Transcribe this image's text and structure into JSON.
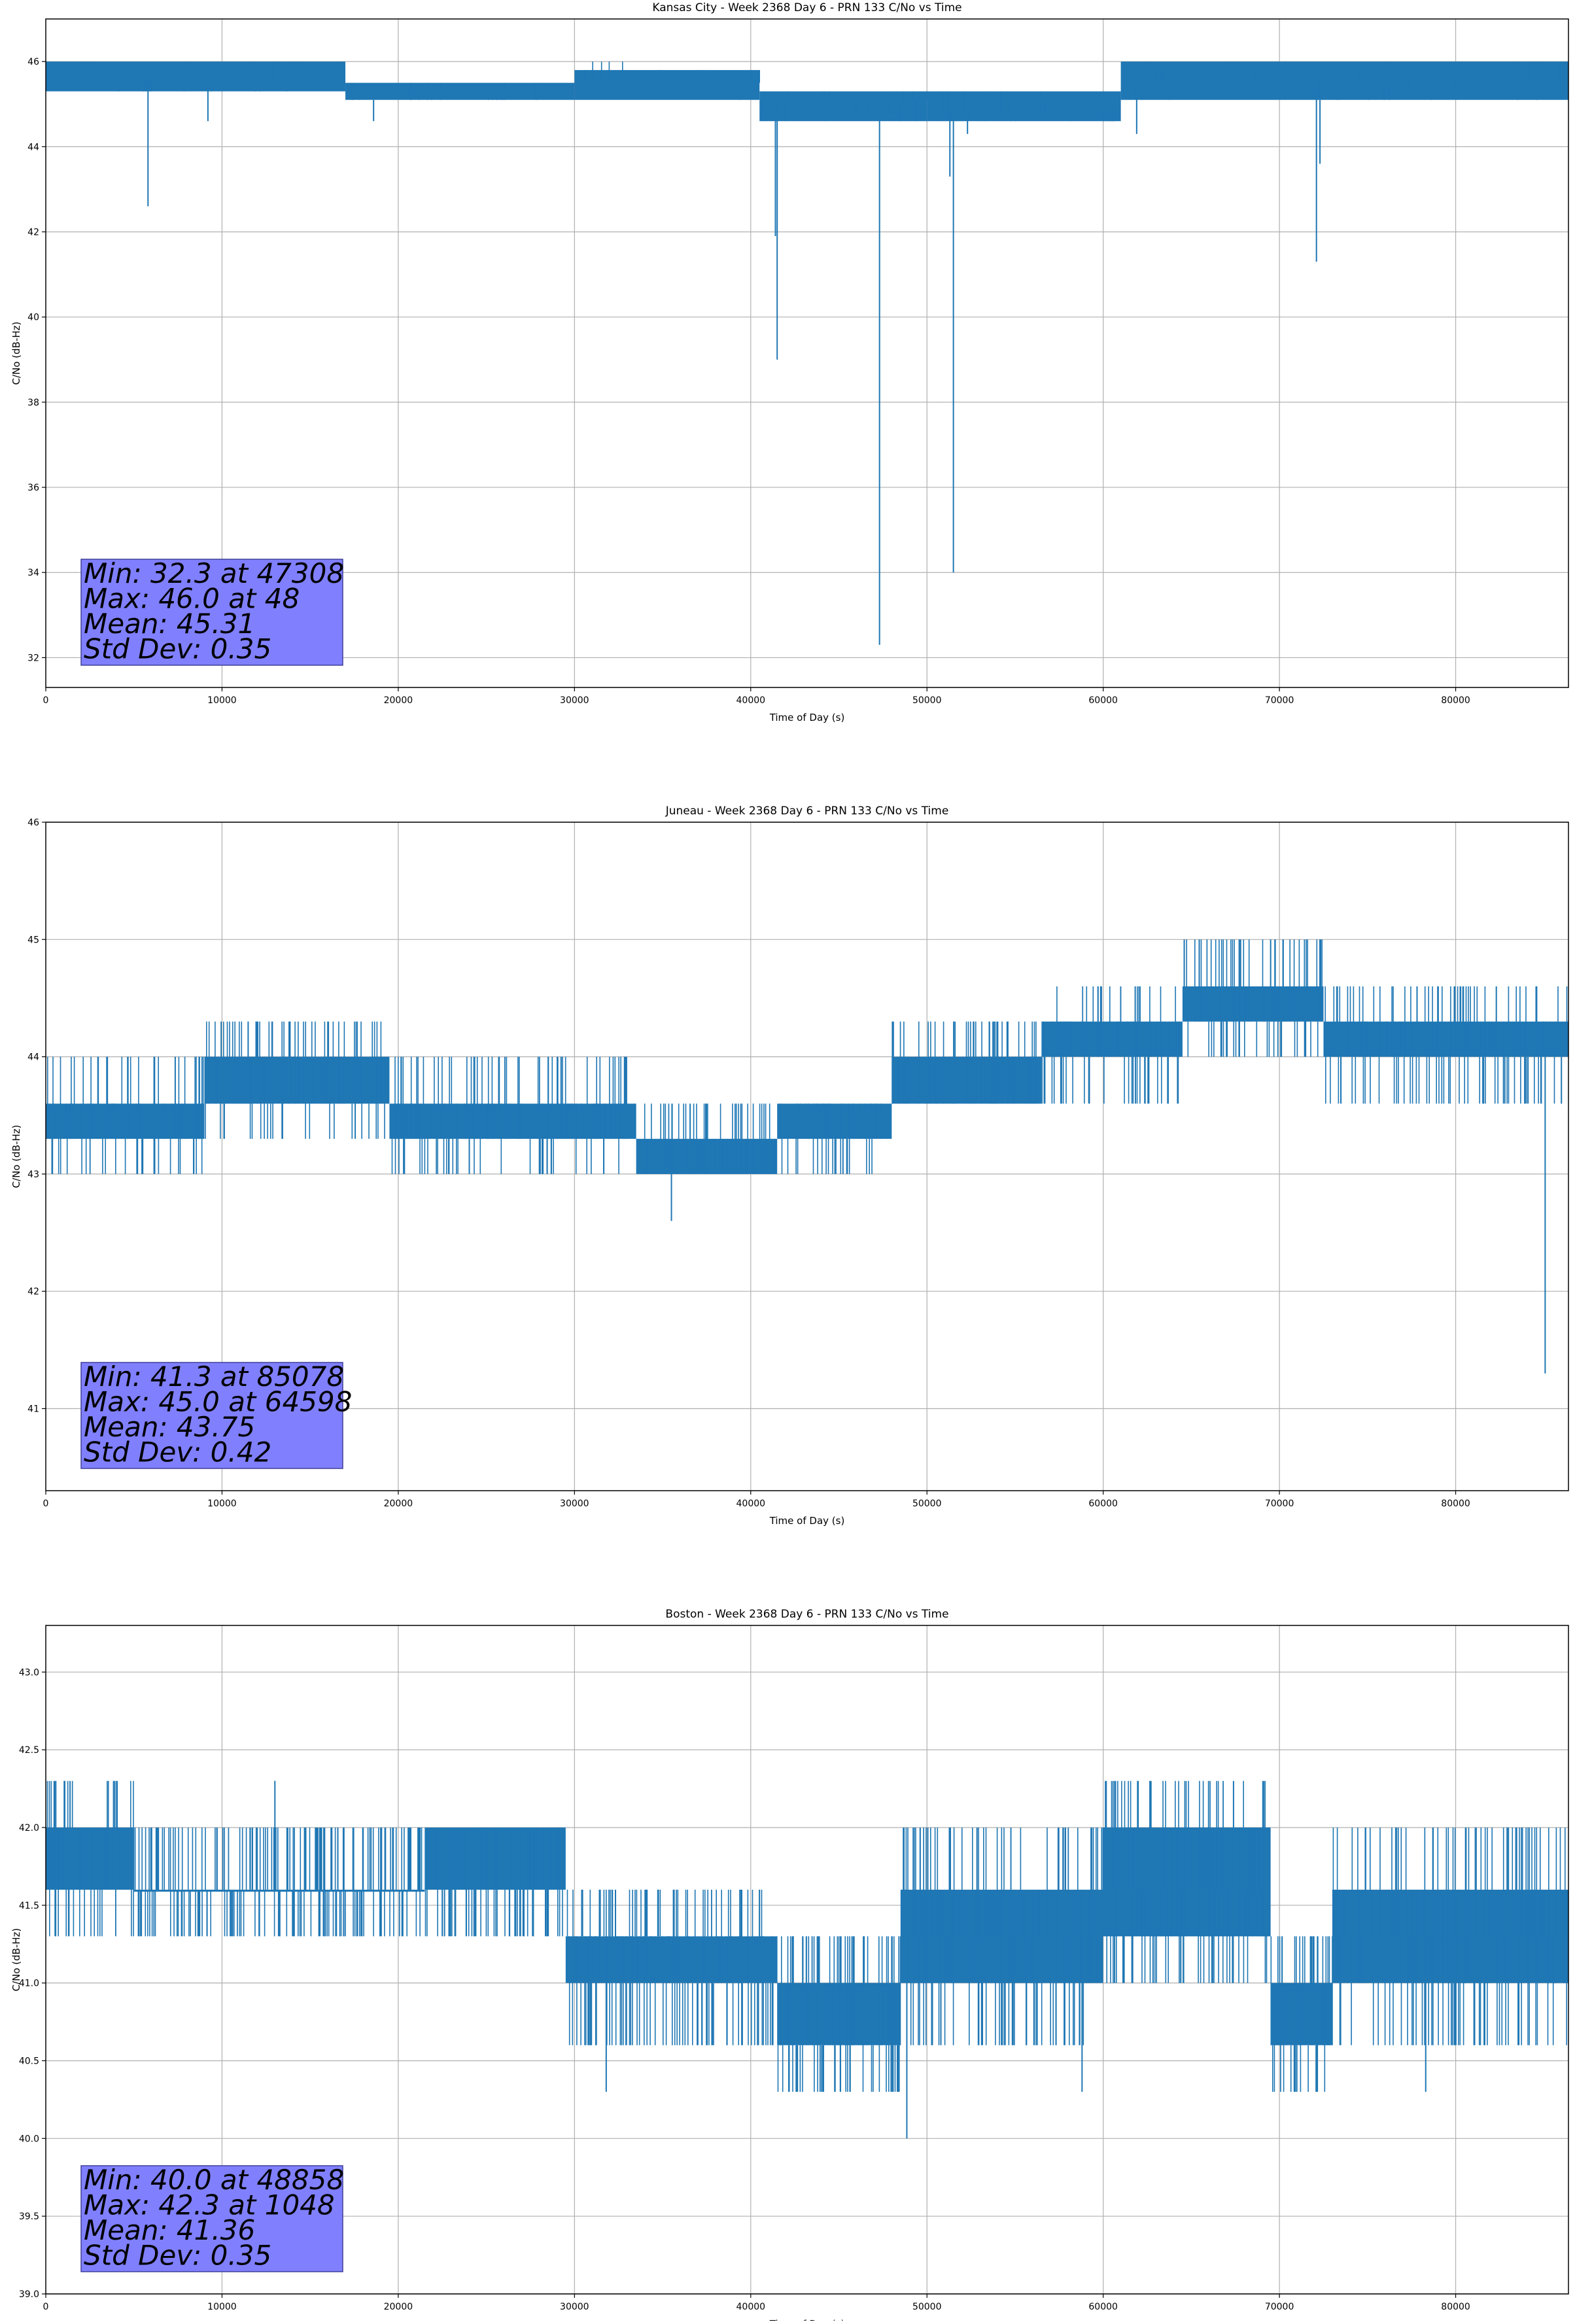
{
  "chart_data": [
    {
      "type": "line",
      "title": "Kansas City - Week 2368 Day 6 - PRN 133 C/No vs Time",
      "xlabel": "Time of Day (s)",
      "ylabel": "C/No (dB-Hz)",
      "xlim": [
        0,
        86400
      ],
      "ylim": [
        31.3,
        47.0
      ],
      "xticks": [
        0,
        10000,
        20000,
        30000,
        40000,
        50000,
        60000,
        70000,
        80000
      ],
      "yticks": [
        32,
        34,
        36,
        38,
        40,
        42,
        44,
        46
      ],
      "ytick_decimals": 0,
      "grid": true,
      "color": "#1f77b4",
      "segments": [
        {
          "x": [
            0,
            17000
          ],
          "base": 45.5,
          "lo": 45.3,
          "hi": 46.0,
          "steps": [
            45.3,
            45.5,
            46.0
          ],
          "density": 0.06
        },
        {
          "x": [
            17000,
            30000
          ],
          "base": 45.1,
          "lo": 45.1,
          "hi": 45.5,
          "steps": [
            45.1,
            45.3,
            45.5
          ],
          "density": 0.08
        },
        {
          "x": [
            30000,
            40500
          ],
          "base": 45.5,
          "lo": 45.1,
          "hi": 45.8,
          "steps": [
            45.1,
            45.5,
            45.8,
            46.0
          ],
          "density": 0.05
        },
        {
          "x": [
            40500,
            50000
          ],
          "base": 45.1,
          "lo": 44.6,
          "hi": 45.3,
          "steps": [
            44.6,
            44.8,
            45.1,
            45.3
          ],
          "density": 0.12
        },
        {
          "x": [
            50000,
            61000
          ],
          "base": 44.8,
          "lo": 44.6,
          "hi": 45.3,
          "steps": [
            44.6,
            44.8,
            45.1,
            45.3
          ],
          "density": 0.12
        },
        {
          "x": [
            61000,
            86400
          ],
          "base": 45.5,
          "lo": 45.1,
          "hi": 46.0,
          "steps": [
            45.1,
            45.3,
            45.5,
            45.8,
            46.0
          ],
          "density": 0.07
        }
      ],
      "spikes": [
        {
          "x": 5800,
          "y": 42.6
        },
        {
          "x": 9200,
          "y": 44.6
        },
        {
          "x": 18600,
          "y": 44.6
        },
        {
          "x": 41400,
          "y": 41.9
        },
        {
          "x": 41500,
          "y": 39.0
        },
        {
          "x": 47308,
          "y": 32.3
        },
        {
          "x": 51300,
          "y": 43.3
        },
        {
          "x": 51500,
          "y": 34.0
        },
        {
          "x": 52300,
          "y": 44.3
        },
        {
          "x": 61900,
          "y": 44.3
        },
        {
          "x": 72100,
          "y": 41.3
        },
        {
          "x": 72300,
          "y": 43.6
        }
      ],
      "stats": {
        "min": "Min: 32.3 at 47308",
        "max": "Max: 46.0 at 48",
        "mean": "Mean: 45.31",
        "std": "Std Dev: 0.35"
      }
    },
    {
      "type": "line",
      "title": "Juneau - Week 2368 Day 6 - PRN 133 C/No vs Time",
      "xlabel": "Time of Day (s)",
      "ylabel": "C/No (dB-Hz)",
      "xlim": [
        0,
        86400
      ],
      "ylim": [
        40.3,
        46.0
      ],
      "xticks": [
        0,
        10000,
        20000,
        30000,
        40000,
        50000,
        60000,
        70000,
        80000
      ],
      "yticks": [
        41,
        42,
        43,
        44,
        45,
        46
      ],
      "ytick_decimals": 0,
      "grid": true,
      "color": "#1f77b4",
      "segments": [
        {
          "x": [
            0,
            9000
          ],
          "base": 43.3,
          "lo": 43.3,
          "hi": 43.6,
          "steps": [
            43.0,
            43.3,
            43.6,
            44.0
          ],
          "density": 0.5
        },
        {
          "x": [
            9000,
            19500
          ],
          "base": 43.6,
          "lo": 43.6,
          "hi": 44.0,
          "steps": [
            43.3,
            43.6,
            44.0,
            44.3
          ],
          "density": 0.5
        },
        {
          "x": [
            19500,
            33500
          ],
          "base": 43.3,
          "lo": 43.3,
          "hi": 43.6,
          "steps": [
            43.0,
            43.3,
            43.6,
            44.0
          ],
          "density": 0.5
        },
        {
          "x": [
            33500,
            41500
          ],
          "base": 43.0,
          "lo": 43.0,
          "hi": 43.3,
          "steps": [
            43.0,
            43.3,
            43.6
          ],
          "density": 0.6
        },
        {
          "x": [
            41500,
            48000
          ],
          "base": 43.3,
          "lo": 43.3,
          "hi": 43.6,
          "steps": [
            43.0,
            43.3,
            43.6
          ],
          "density": 0.5
        },
        {
          "x": [
            48000,
            56500
          ],
          "base": 43.6,
          "lo": 43.6,
          "hi": 44.0,
          "steps": [
            43.6,
            44.0,
            44.3
          ],
          "density": 0.4
        },
        {
          "x": [
            56500,
            64500
          ],
          "base": 44.0,
          "lo": 44.0,
          "hi": 44.3,
          "steps": [
            43.6,
            44.0,
            44.3,
            44.6
          ],
          "density": 0.5
        },
        {
          "x": [
            64500,
            72500
          ],
          "base": 44.3,
          "lo": 44.3,
          "hi": 44.6,
          "steps": [
            44.0,
            44.3,
            44.6,
            45.0
          ],
          "density": 0.5
        },
        {
          "x": [
            72500,
            86400
          ],
          "base": 44.0,
          "lo": 44.0,
          "hi": 44.3,
          "steps": [
            43.6,
            44.0,
            44.3,
            44.6
          ],
          "density": 0.5
        }
      ],
      "spikes": [
        {
          "x": 35500,
          "y": 42.6
        },
        {
          "x": 85078,
          "y": 41.3
        },
        {
          "x": 64598,
          "y": 45.0
        },
        {
          "x": 69500,
          "y": 45.0
        },
        {
          "x": 86000,
          "y": 43.6
        }
      ],
      "stats": {
        "min": "Min: 41.3 at 85078",
        "max": "Max: 45.0 at 64598",
        "mean": "Mean: 43.75",
        "std": "Std Dev: 0.42"
      }
    },
    {
      "type": "line",
      "title": "Boston - Week 2368 Day 6 - PRN 133 C/No vs Time",
      "xlabel": "Time of Day (s)",
      "ylabel": "C/No (dB-Hz)",
      "xlim": [
        0,
        86400
      ],
      "ylim": [
        39.0,
        43.3
      ],
      "xticks": [
        0,
        10000,
        20000,
        30000,
        40000,
        50000,
        60000,
        70000,
        80000
      ],
      "yticks": [
        39.0,
        39.5,
        40.0,
        40.5,
        41.0,
        41.5,
        42.0,
        42.5,
        43.0
      ],
      "ytick_decimals": 1,
      "grid": true,
      "color": "#1f77b4",
      "segments": [
        {
          "x": [
            0,
            5000
          ],
          "base": 41.6,
          "lo": 41.6,
          "hi": 42.0,
          "steps": [
            41.3,
            41.6,
            42.0,
            42.3
          ],
          "density": 0.8
        },
        {
          "x": [
            5000,
            21500
          ],
          "base": 41.6,
          "lo": 41.6,
          "hi": 41.6,
          "steps": [
            41.3,
            41.6,
            42.0
          ],
          "density": 0.7
        },
        {
          "x": [
            21500,
            29500
          ],
          "base": 41.6,
          "lo": 41.6,
          "hi": 42.0,
          "steps": [
            41.3,
            41.6,
            42.0
          ],
          "density": 0.7
        },
        {
          "x": [
            29500,
            35000
          ],
          "base": 41.3,
          "lo": 41.0,
          "hi": 41.3,
          "steps": [
            40.6,
            41.0,
            41.3,
            41.6
          ],
          "density": 0.8
        },
        {
          "x": [
            35000,
            41500
          ],
          "base": 41.0,
          "lo": 41.0,
          "hi": 41.3,
          "steps": [
            40.6,
            41.0,
            41.3,
            41.6
          ],
          "density": 0.8
        },
        {
          "x": [
            41500,
            48500
          ],
          "base": 40.6,
          "lo": 40.6,
          "hi": 41.0,
          "steps": [
            40.3,
            40.6,
            41.0,
            41.3
          ],
          "density": 0.8
        },
        {
          "x": [
            48500,
            60000
          ],
          "base": 41.3,
          "lo": 41.0,
          "hi": 41.6,
          "steps": [
            40.6,
            41.0,
            41.3,
            41.6,
            42.0
          ],
          "density": 0.8
        },
        {
          "x": [
            60000,
            69500
          ],
          "base": 41.6,
          "lo": 41.3,
          "hi": 42.0,
          "steps": [
            41.0,
            41.3,
            41.6,
            42.0,
            42.3
          ],
          "density": 0.8
        },
        {
          "x": [
            69500,
            73000
          ],
          "base": 40.6,
          "lo": 40.6,
          "hi": 41.0,
          "steps": [
            40.3,
            40.6,
            41.0,
            41.3
          ],
          "density": 0.8
        },
        {
          "x": [
            73000,
            86400
          ],
          "base": 41.3,
          "lo": 41.0,
          "hi": 41.6,
          "steps": [
            40.6,
            41.0,
            41.3,
            41.6,
            42.0
          ],
          "density": 0.8
        }
      ],
      "spikes": [
        {
          "x": 1048,
          "y": 42.3
        },
        {
          "x": 48858,
          "y": 40.0
        },
        {
          "x": 13000,
          "y": 42.3
        },
        {
          "x": 31800,
          "y": 40.3
        },
        {
          "x": 58800,
          "y": 40.3
        },
        {
          "x": 78300,
          "y": 40.3
        }
      ],
      "stats": {
        "min": "Min: 40.0 at 48858",
        "max": "Max: 42.3 at 1048",
        "mean": "Mean: 41.36",
        "std": "Std Dev: 0.35"
      }
    }
  ]
}
